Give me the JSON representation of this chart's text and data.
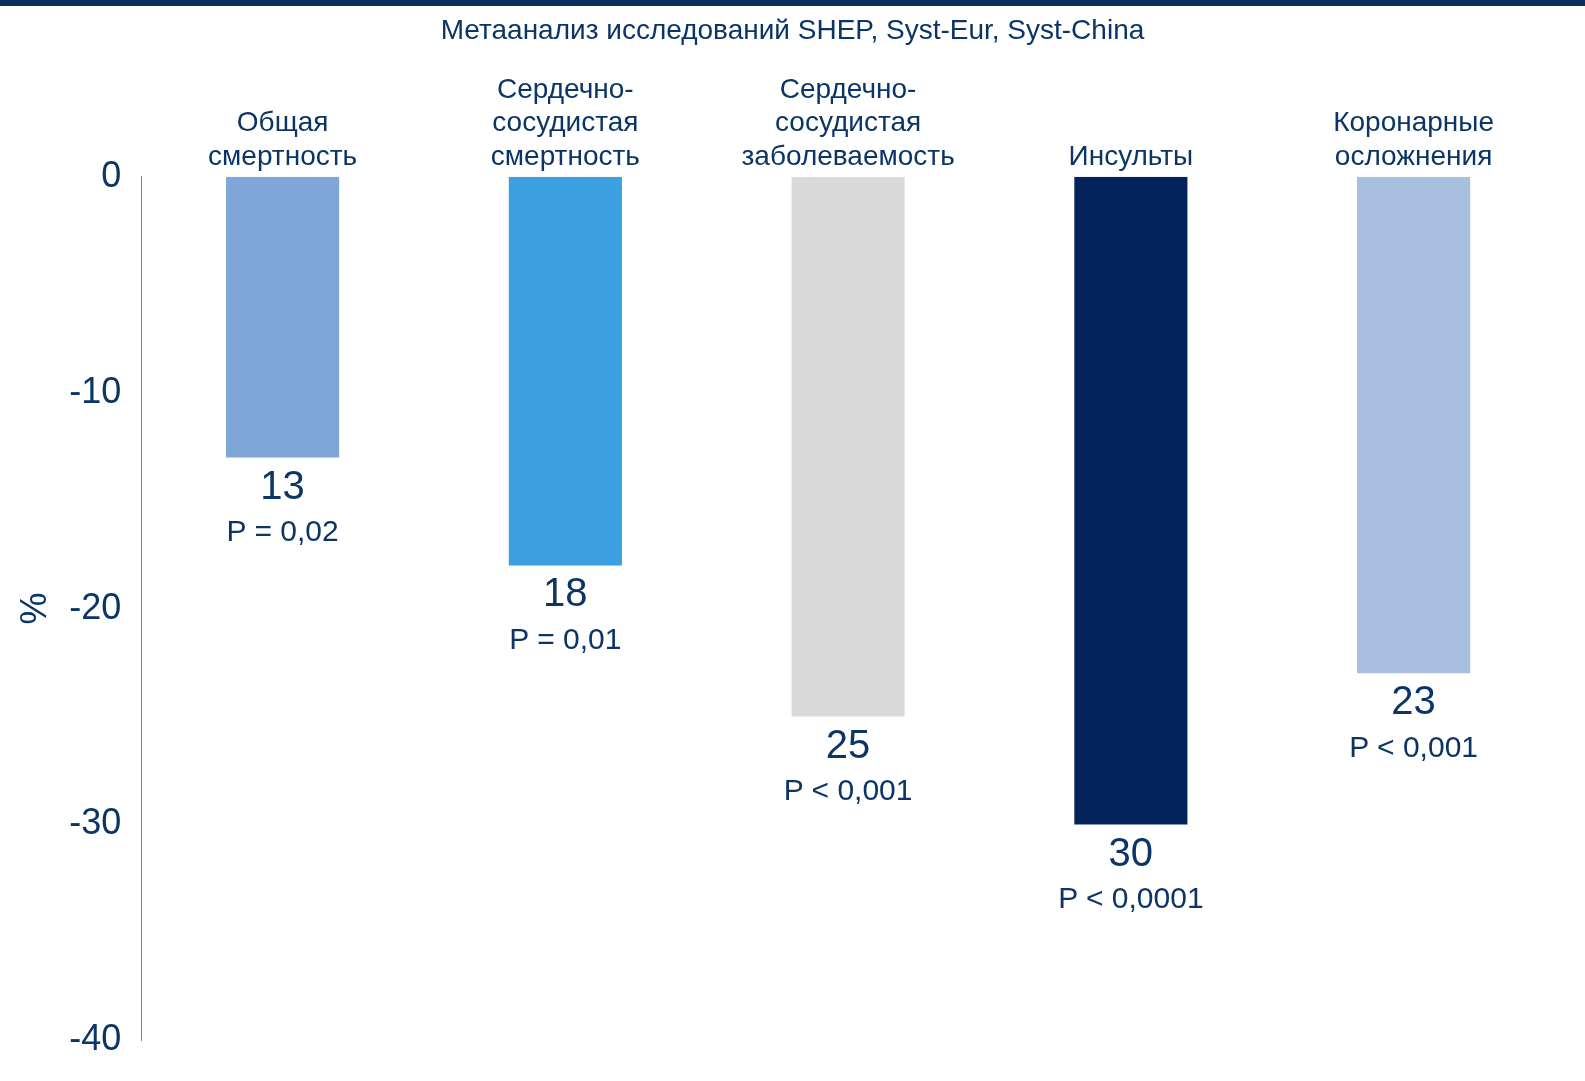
{
  "chart_data": {
    "type": "bar",
    "title": "Метаанализ исследований SHEP, Syst-Eur, Syst-China",
    "ylabel": "%",
    "categories": [
      "Общая смертность",
      "Сердечно-сосудистая смертность",
      "Сердечно-сосудистая заболеваемость",
      "Инсульты",
      "Коронарные осложнения"
    ],
    "values": [
      -13,
      -18,
      -25,
      -30,
      -23
    ],
    "colors": [
      "#7fa6d8",
      "#3c9fe0",
      "#d9d9d9",
      "#03245a",
      "#a9bfdf"
    ],
    "annotations": [
      {
        "text": "13",
        "x": "Общая смертность",
        "y": -13
      },
      {
        "text": "18",
        "x": "Сердечно-сосудистая смертность",
        "y": -18
      },
      {
        "text": "25",
        "x": "Сердечно-сосудистая заболеваемость",
        "y": -25
      },
      {
        "text": "30",
        "x": "Инсульты",
        "y": -30
      },
      {
        "text": "23",
        "x": "Коронарные осложнения",
        "y": -23
      },
      {
        "text": "P = 0,02",
        "x": "Общая смертность",
        "y": -13
      },
      {
        "text": "P = 0,01",
        "x": "Сердечно-сосудистая смертность",
        "y": -18
      },
      {
        "text": "P < 0,001",
        "x": "Сердечно-сосудистая заболеваемость",
        "y": -25
      },
      {
        "text": "P < 0,0001",
        "x": "Инсульты",
        "y": -30
      },
      {
        "text": "P < 0,001",
        "x": "Коронарные осложнения",
        "y": -23
      }
    ],
    "ylim": [
      -40,
      0
    ],
    "yticks": [
      0,
      -10,
      -20,
      -30,
      -40
    ],
    "grid": false,
    "legend": false
  }
}
